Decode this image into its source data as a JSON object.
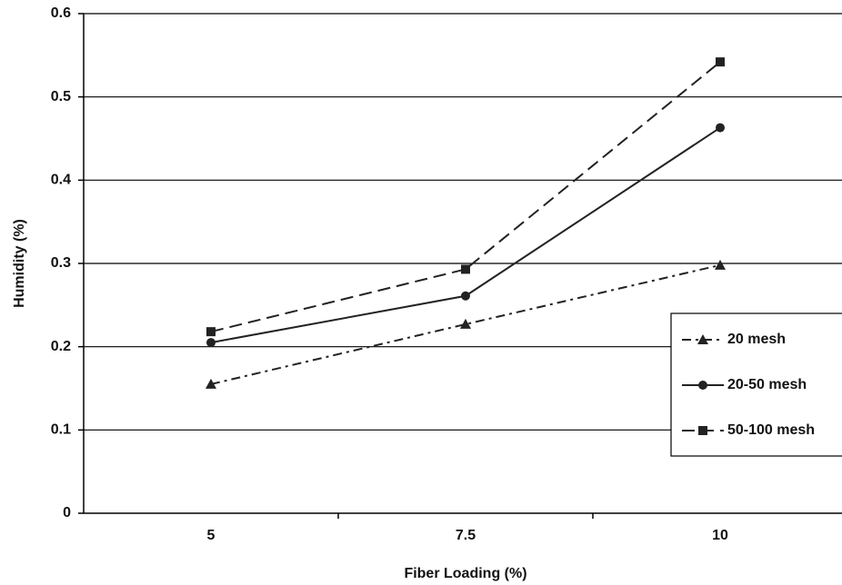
{
  "chart_data": {
    "type": "line",
    "x_label": "Fiber Loading (%)",
    "y_label": "Humidity (%)",
    "categories": [
      "5",
      "7.5",
      "10"
    ],
    "series": [
      {
        "name": "20 mesh",
        "color": "#222222",
        "marker": "triangle",
        "dash": "dashdot",
        "values": [
          0.155,
          0.227,
          0.298
        ]
      },
      {
        "name": "20-50 mesh",
        "color": "#222222",
        "marker": "circle",
        "dash": "solid",
        "values": [
          0.205,
          0.261,
          0.463
        ]
      },
      {
        "name": "50-100 mesh",
        "color": "#222222",
        "marker": "square",
        "dash": "dashed",
        "values": [
          0.218,
          0.293,
          0.542
        ]
      }
    ],
    "ylim": [
      0,
      0.6
    ],
    "yticks": [
      0,
      0.1,
      0.2,
      0.3,
      0.4,
      0.5,
      0.6
    ],
    "grid": true,
    "legend": "right"
  }
}
